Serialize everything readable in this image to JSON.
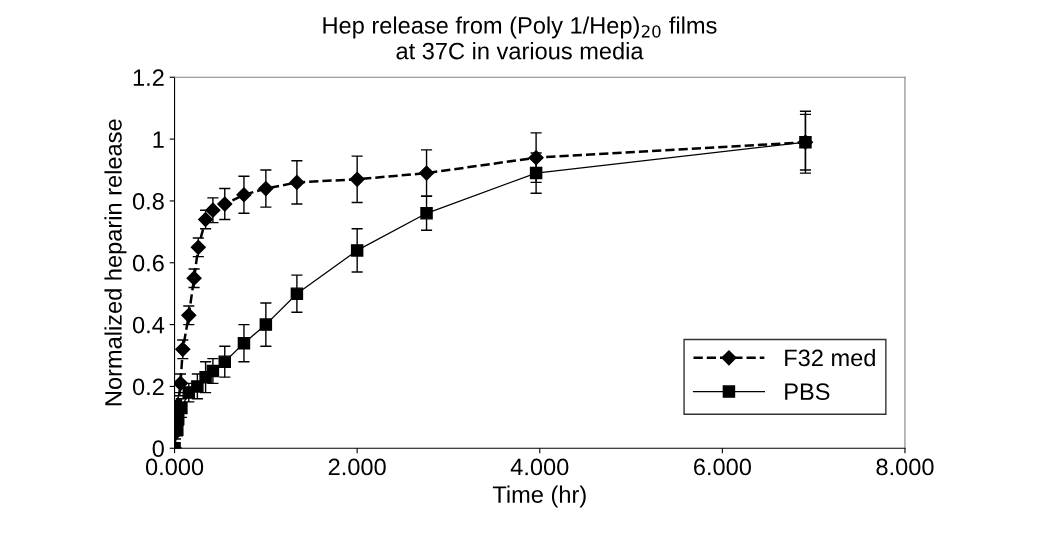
{
  "chart_data": {
    "type": "line",
    "title": "Hep release from (Poly 1/Hep)$_{20}$ films\nat 37C in various media",
    "xlabel": "Time (hr)",
    "ylabel": "Normalized heparin release",
    "series": [
      {
        "name": "F32 med",
        "color": "#000000",
        "marker": "diamond",
        "line_style": "dashed",
        "x": [
          0,
          0.01,
          0.02,
          0.04,
          0.065,
          0.09,
          0.156,
          0.214,
          0.26,
          0.34,
          0.42,
          0.55,
          0.76,
          1.0,
          1.34,
          2.0,
          2.76,
          3.96,
          6.91
        ],
        "values": [
          0,
          0.05,
          0.1,
          0.14,
          0.21,
          0.32,
          0.43,
          0.55,
          0.65,
          0.74,
          0.77,
          0.79,
          0.82,
          0.84,
          0.86,
          0.87,
          0.89,
          0.94,
          0.99
        ],
        "errors": [
          0,
          0.02,
          0.02,
          0.03,
          0.03,
          0.03,
          0.03,
          0.03,
          0.03,
          0.03,
          0.04,
          0.05,
          0.06,
          0.06,
          0.07,
          0.075,
          0.075,
          0.08,
          0.09
        ]
      },
      {
        "name": "PBS",
        "color": "#000000",
        "marker": "square",
        "line_style": "solid",
        "x": [
          0,
          0.03,
          0.04,
          0.075,
          0.156,
          0.25,
          0.34,
          0.42,
          0.55,
          0.76,
          1.0,
          1.34,
          2.0,
          2.76,
          3.96,
          6.91
        ],
        "values": [
          0,
          0.06,
          0.095,
          0.13,
          0.18,
          0.2,
          0.23,
          0.25,
          0.28,
          0.34,
          0.4,
          0.5,
          0.64,
          0.76,
          0.89,
          0.99
        ],
        "errors": [
          0,
          0.02,
          0.02,
          0.03,
          0.03,
          0.04,
          0.05,
          0.04,
          0.05,
          0.06,
          0.07,
          0.06,
          0.07,
          0.055,
          0.065,
          0.1
        ]
      }
    ],
    "xlim": [
      0,
      8
    ],
    "ylim": [
      0,
      1.2
    ],
    "xticks": [
      {
        "value": 0,
        "label": "0.000"
      },
      {
        "value": 2,
        "label": "2.000"
      },
      {
        "value": 4,
        "label": "4.000"
      },
      {
        "value": 6,
        "label": "6.000"
      },
      {
        "value": 8,
        "label": "8.000"
      }
    ],
    "yticks": [
      {
        "value": 0,
        "label": "0"
      },
      0.2,
      0.4,
      0.6,
      0.8,
      {
        "value": 1,
        "label": "1"
      },
      1.2
    ],
    "grid": false,
    "legend": "bottom right"
  }
}
